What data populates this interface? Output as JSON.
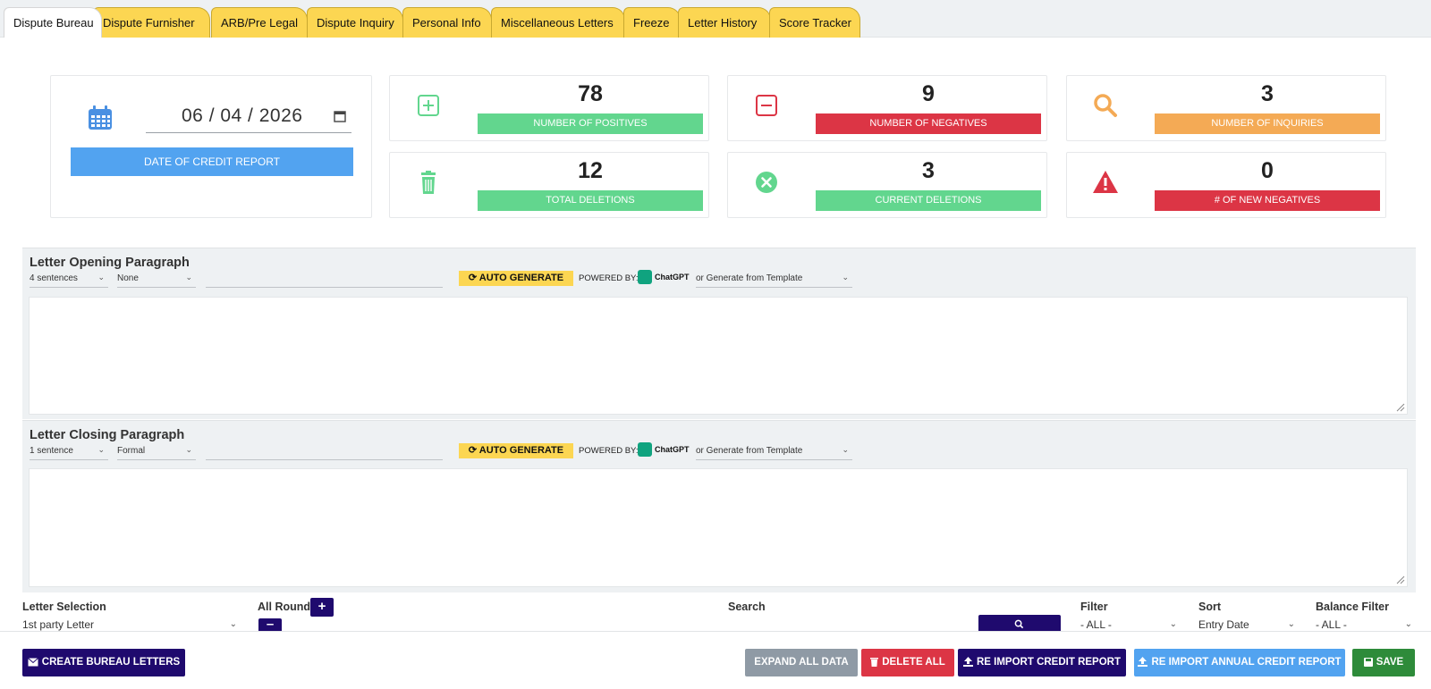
{
  "tabs": [
    {
      "label": "Dispute Bureau",
      "active": true
    },
    {
      "label": "Dispute Furnisher"
    },
    {
      "label": "ARB/Pre Legal"
    },
    {
      "label": "Dispute Inquiry"
    },
    {
      "label": "Personal Info"
    },
    {
      "label": "Miscellaneous Letters"
    },
    {
      "label": "Freeze"
    },
    {
      "label": "Letter History"
    },
    {
      "label": "Score Tracker"
    }
  ],
  "credit_report": {
    "date_value": "06 / 04 / 2026",
    "date_label": "DATE OF CREDIT REPORT"
  },
  "stats": {
    "positives": {
      "value": "78",
      "label": "NUMBER OF POSITIVES",
      "icon": "plus-square-icon"
    },
    "negatives": {
      "value": "9",
      "label": "NUMBER OF NEGATIVES",
      "icon": "minus-square-icon"
    },
    "inquiries": {
      "value": "3",
      "label": "NUMBER OF INQUIRIES",
      "icon": "search-icon"
    },
    "total_deletions": {
      "value": "12",
      "label": "TOTAL DELETIONS",
      "icon": "trash-icon"
    },
    "current_deletions": {
      "value": "3",
      "label": "CURRENT DELETIONS",
      "icon": "x-circle-icon"
    },
    "new_negatives": {
      "value": "0",
      "label": "# OF NEW NEGATIVES",
      "icon": "warning-icon"
    }
  },
  "colors": {
    "green": "#62d68e",
    "red": "#dc3545",
    "orange": "#f4aa55",
    "blue": "#52a3f0",
    "navy": "#1f0a6e",
    "yellow": "#fcd652"
  },
  "opening": {
    "title": "Letter Opening Paragraph",
    "length": "4 sentences",
    "tone": "None",
    "auto_label": "AUTO GENERATE",
    "powered_by": "POWERED BY:",
    "gpt": "ChatGPT",
    "template": "or Generate from Template"
  },
  "closing": {
    "title": "Letter Closing Paragraph",
    "length": "1 sentence",
    "tone": "Formal",
    "auto_label": "AUTO GENERATE",
    "powered_by": "POWERED BY:",
    "gpt": "ChatGPT",
    "template": "or Generate from Template"
  },
  "filters": {
    "letter_selection_label": "Letter Selection",
    "letter_selection_value": "1st party Letter",
    "all_round_label": "All Round",
    "search_label": "Search",
    "filter_label": "Filter",
    "filter_value": "- ALL -",
    "sort_label": "Sort",
    "sort_value": "Entry Date",
    "balance_label": "Balance Filter",
    "balance_value": "- ALL -"
  },
  "footer": {
    "create": "CREATE BUREAU LETTERS",
    "expand": "EXPAND ALL DATA",
    "delete": "DELETE ALL",
    "reimport": "RE IMPORT CREDIT REPORT",
    "reimport_annual": "RE IMPORT ANNUAL CREDIT REPORT",
    "save": "SAVE"
  }
}
